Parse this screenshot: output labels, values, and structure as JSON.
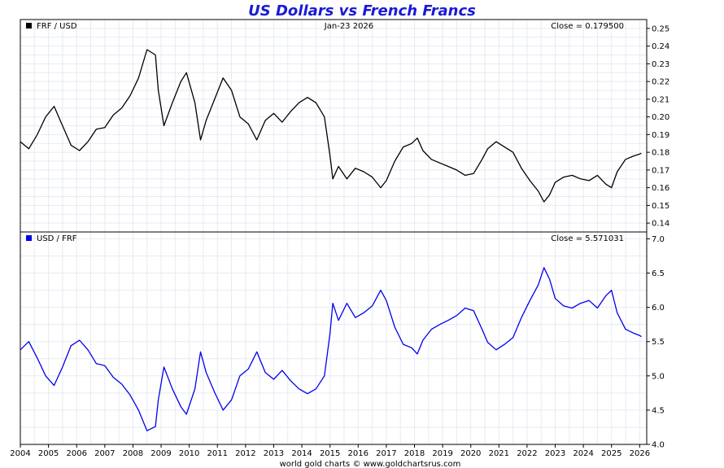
{
  "title": "US Dollars vs French Francs",
  "date_label": "Jan-23  2026",
  "footer": "world gold charts © www.goldchartsrus.com",
  "chart_data": [
    {
      "type": "line",
      "legend": "FRF / USD",
      "close_label": "Close = 0.179500",
      "color": "#000000",
      "legend_placement": "top-left",
      "grid": true,
      "ylim": [
        0.135,
        0.255
      ],
      "y_ticks": [
        "0.25",
        "0.24",
        "0.23",
        "0.22",
        "0.21",
        "0.20",
        "0.19",
        "0.18",
        "0.17",
        "0.16",
        "0.15",
        "0.14"
      ],
      "x": [
        2004.0,
        2004.3,
        2004.6,
        2004.9,
        2005.2,
        2005.5,
        2005.8,
        2006.1,
        2006.4,
        2006.7,
        2007.0,
        2007.3,
        2007.6,
        2007.9,
        2008.2,
        2008.5,
        2008.8,
        2008.9,
        2009.1,
        2009.4,
        2009.7,
        2009.9,
        2010.2,
        2010.4,
        2010.6,
        2010.9,
        2011.2,
        2011.5,
        2011.8,
        2012.1,
        2012.4,
        2012.7,
        2013.0,
        2013.3,
        2013.6,
        2013.9,
        2014.2,
        2014.5,
        2014.8,
        2015.0,
        2015.1,
        2015.3,
        2015.6,
        2015.9,
        2016.2,
        2016.5,
        2016.8,
        2017.0,
        2017.3,
        2017.6,
        2017.9,
        2018.1,
        2018.3,
        2018.6,
        2018.9,
        2019.2,
        2019.5,
        2019.8,
        2020.1,
        2020.4,
        2020.6,
        2020.9,
        2021.2,
        2021.5,
        2021.8,
        2022.1,
        2022.4,
        2022.6,
        2022.8,
        2023.0,
        2023.3,
        2023.6,
        2023.9,
        2024.2,
        2024.5,
        2024.8,
        2025.0,
        2025.2,
        2025.5,
        2025.8,
        2026.0,
        2026.06
      ],
      "y": [
        0.186,
        0.182,
        0.19,
        0.2,
        0.206,
        0.195,
        0.184,
        0.181,
        0.186,
        0.193,
        0.194,
        0.201,
        0.205,
        0.212,
        0.222,
        0.238,
        0.235,
        0.215,
        0.195,
        0.208,
        0.22,
        0.225,
        0.208,
        0.187,
        0.198,
        0.21,
        0.222,
        0.215,
        0.2,
        0.196,
        0.187,
        0.198,
        0.202,
        0.197,
        0.203,
        0.208,
        0.211,
        0.208,
        0.2,
        0.178,
        0.165,
        0.172,
        0.165,
        0.171,
        0.169,
        0.166,
        0.16,
        0.164,
        0.175,
        0.183,
        0.185,
        0.188,
        0.181,
        0.176,
        0.174,
        0.172,
        0.17,
        0.167,
        0.168,
        0.176,
        0.182,
        0.186,
        0.183,
        0.18,
        0.171,
        0.164,
        0.158,
        0.152,
        0.156,
        0.163,
        0.166,
        0.167,
        0.165,
        0.164,
        0.167,
        0.162,
        0.16,
        0.169,
        0.176,
        0.178,
        0.179,
        0.1795
      ]
    },
    {
      "type": "line",
      "legend": "USD / FRF",
      "close_label": "Close = 5.571031",
      "color": "#0000ee",
      "legend_placement": "top-left",
      "grid": true,
      "ylim": [
        4.0,
        7.1
      ],
      "y_ticks": [
        "7.0",
        "6.5",
        "6.0",
        "5.5",
        "5.0",
        "4.5",
        "4.0"
      ],
      "x": [
        2004.0,
        2004.3,
        2004.6,
        2004.9,
        2005.2,
        2005.5,
        2005.8,
        2006.1,
        2006.4,
        2006.7,
        2007.0,
        2007.3,
        2007.6,
        2007.9,
        2008.2,
        2008.5,
        2008.8,
        2008.9,
        2009.1,
        2009.4,
        2009.7,
        2009.9,
        2010.2,
        2010.4,
        2010.6,
        2010.9,
        2011.2,
        2011.5,
        2011.8,
        2012.1,
        2012.4,
        2012.7,
        2013.0,
        2013.3,
        2013.6,
        2013.9,
        2014.2,
        2014.5,
        2014.8,
        2015.0,
        2015.1,
        2015.3,
        2015.6,
        2015.9,
        2016.2,
        2016.5,
        2016.8,
        2017.0,
        2017.3,
        2017.6,
        2017.9,
        2018.1,
        2018.3,
        2018.6,
        2018.9,
        2019.2,
        2019.5,
        2019.8,
        2020.1,
        2020.4,
        2020.6,
        2020.9,
        2021.2,
        2021.5,
        2021.8,
        2022.1,
        2022.4,
        2022.6,
        2022.8,
        2023.0,
        2023.3,
        2023.6,
        2023.9,
        2024.2,
        2024.5,
        2024.8,
        2025.0,
        2025.2,
        2025.5,
        2025.8,
        2026.0,
        2026.06
      ],
      "y": [
        5.38,
        5.5,
        5.26,
        5.0,
        4.86,
        5.13,
        5.44,
        5.52,
        5.38,
        5.18,
        5.15,
        4.98,
        4.88,
        4.72,
        4.5,
        4.2,
        4.26,
        4.65,
        5.13,
        4.81,
        4.55,
        4.44,
        4.81,
        5.35,
        5.05,
        4.76,
        4.5,
        4.65,
        5.0,
        5.1,
        5.35,
        5.05,
        4.95,
        5.08,
        4.93,
        4.81,
        4.74,
        4.81,
        5.0,
        5.62,
        6.06,
        5.81,
        6.06,
        5.85,
        5.92,
        6.02,
        6.25,
        6.1,
        5.71,
        5.46,
        5.41,
        5.32,
        5.52,
        5.68,
        5.75,
        5.81,
        5.88,
        5.99,
        5.95,
        5.68,
        5.49,
        5.38,
        5.46,
        5.56,
        5.85,
        6.1,
        6.33,
        6.58,
        6.41,
        6.13,
        6.02,
        5.99,
        6.06,
        6.1,
        5.99,
        6.17,
        6.25,
        5.92,
        5.68,
        5.62,
        5.59,
        5.571
      ]
    }
  ],
  "x_axis": {
    "range": [
      2004.0,
      2026.25
    ],
    "tick_labels": [
      "2004",
      "2005",
      "2006",
      "2007",
      "2008",
      "2009",
      "2010",
      "2011",
      "2012",
      "2013",
      "2014",
      "2015",
      "2016",
      "2017",
      "2018",
      "2019",
      "2020",
      "2021",
      "2022",
      "2023",
      "2024",
      "2025",
      "2026"
    ]
  }
}
